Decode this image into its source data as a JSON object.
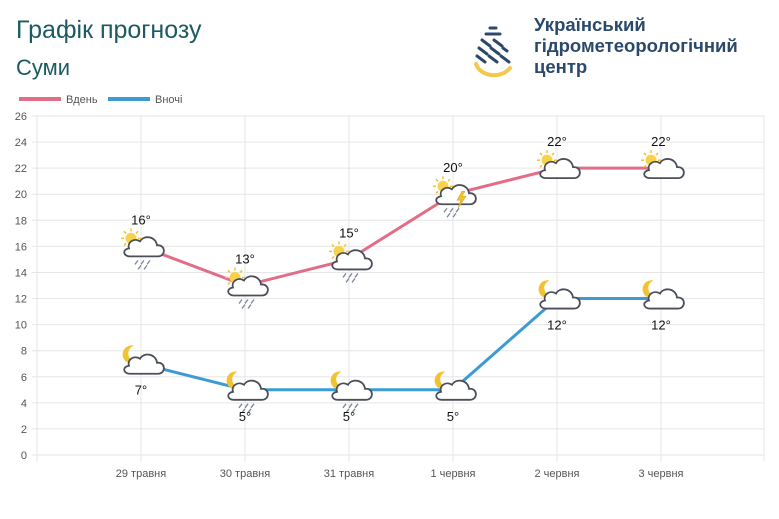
{
  "header": {
    "title": "Графік прогнозу",
    "city": "Суми",
    "org_line1": "Український",
    "org_line2": "гідрометеорологічний",
    "org_line3": "центр"
  },
  "colors": {
    "day": "#e36c87",
    "night": "#3d9bd3",
    "title": "#1b5a63",
    "grid": "#e6e6e6"
  },
  "chart_data": {
    "type": "line",
    "categories": [
      "29 травня",
      "30 травня",
      "31 травня",
      "1 червня",
      "2 червня",
      "3 червня"
    ],
    "ylim": [
      0,
      26
    ],
    "yticks": [
      0,
      2,
      4,
      6,
      8,
      10,
      12,
      14,
      16,
      18,
      20,
      22,
      24,
      26
    ],
    "grid": true,
    "legend_position": "top-left",
    "series": [
      {
        "name": "Вдень",
        "values": [
          16,
          13,
          15,
          20,
          22,
          22
        ],
        "labels": [
          "16°",
          "13°",
          "15°",
          "20°",
          "22°",
          "22°"
        ],
        "icons": [
          "sun-cloud-rain-icon",
          "sun-cloud-rain-icon",
          "sun-cloud-rain-icon",
          "sun-cloud-storm-icon",
          "sun-cloud-icon",
          "sun-cloud-icon"
        ]
      },
      {
        "name": "Вночі",
        "values": [
          7,
          5,
          5,
          5,
          12,
          12
        ],
        "labels": [
          "7°",
          "5°",
          "5°",
          "5°",
          "12°",
          "12°"
        ],
        "icons": [
          "moon-cloud-icon",
          "moon-cloud-rain-icon",
          "moon-cloud-rain-icon",
          "moon-cloud-icon",
          "moon-cloud-icon",
          "moon-cloud-icon"
        ]
      }
    ]
  }
}
